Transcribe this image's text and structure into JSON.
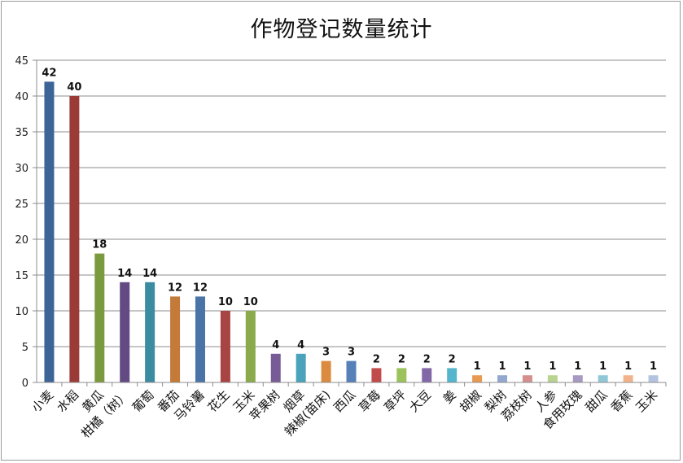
{
  "chart_data": {
    "type": "bar",
    "title": "作物登记数量统计",
    "xlabel": "",
    "ylabel": "",
    "ylim": [
      0,
      45
    ],
    "yticks": [
      0,
      5,
      10,
      15,
      20,
      25,
      30,
      35,
      40,
      45
    ],
    "grid": true,
    "legend": "none",
    "categories": [
      "小麦",
      "水稻",
      "黄瓜",
      "柑橘（树）",
      "葡萄",
      "番茄",
      "马铃薯",
      "花生",
      "玉米",
      "苹果树",
      "烟草",
      "辣椒(苗床)",
      "西瓜",
      "草莓",
      "草坪",
      "大豆",
      "姜",
      "胡椒",
      "梨树",
      "荔枝树",
      "人参",
      "食用玫瑰",
      "甜瓜",
      "香蕉",
      "玉米"
    ],
    "values": [
      42,
      40,
      18,
      14,
      14,
      12,
      12,
      10,
      10,
      4,
      4,
      3,
      3,
      2,
      2,
      2,
      2,
      1,
      1,
      1,
      1,
      1,
      1,
      1,
      1
    ],
    "colors": [
      "#3c6497",
      "#9a3b38",
      "#7b9a3e",
      "#634a83",
      "#3b8ba1",
      "#c47a38",
      "#4a73a8",
      "#a84442",
      "#8aaa4c",
      "#775b97",
      "#4aa3bb",
      "#db8b40",
      "#5680b8",
      "#c04b4a",
      "#9cc25b",
      "#8268a7",
      "#55b5cd",
      "#e89a52",
      "#92a8cf",
      "#d58f8e",
      "#b9d490",
      "#a899c2",
      "#90c8d8",
      "#f2b38a",
      "#b4c4e0"
    ]
  }
}
